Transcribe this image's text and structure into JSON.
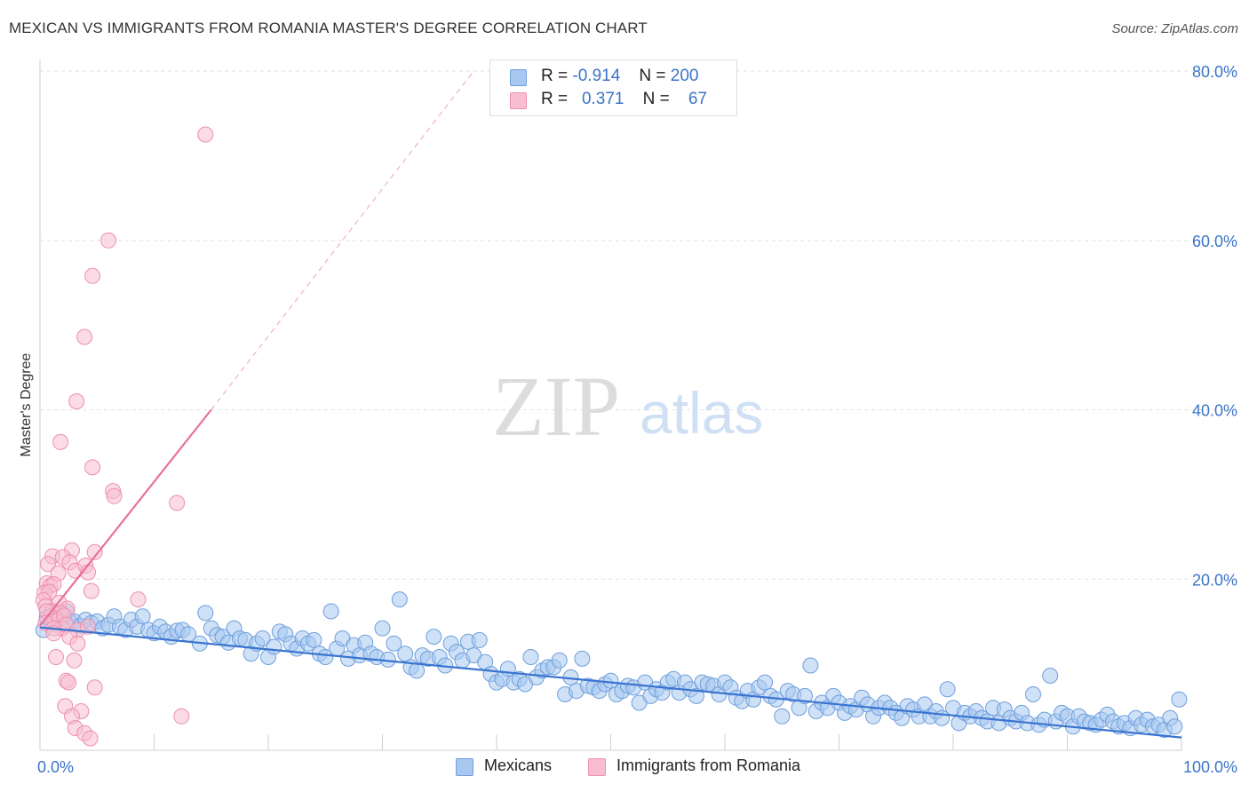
{
  "title": "MEXICAN VS IMMIGRANTS FROM ROMANIA MASTER'S DEGREE CORRELATION CHART",
  "source": "Source: ZipAtlas.com",
  "watermark": {
    "zip": "ZIP",
    "atlas": "atlas"
  },
  "legend": {
    "series": [
      {
        "r_label": "R =",
        "r_value": "-0.914",
        "n_label": "N =",
        "n_value": "200",
        "color": "#a8c8f0",
        "stroke": "#6e9fdc"
      },
      {
        "r_label": "R =",
        "r_value": "0.371",
        "n_label": "N =",
        "n_value": "67",
        "color": "#f8bdd0",
        "stroke": "#ec8fb0"
      }
    ]
  },
  "bottom_legend": [
    {
      "label": "Mexicans",
      "color": "#a8c8f0",
      "stroke": "#6e9fdc"
    },
    {
      "label": "Immigrants from Romania",
      "color": "#f8bdd0",
      "stroke": "#ec8fb0"
    }
  ],
  "chart_data": {
    "type": "scatter",
    "title": "MEXICAN VS IMMIGRANTS FROM ROMANIA MASTER'S DEGREE CORRELATION CHART",
    "xlabel": "",
    "ylabel": "Master's Degree",
    "xlim": [
      0,
      100
    ],
    "ylim": [
      0,
      80
    ],
    "x_tick_labels": [
      "0.0%",
      "100.0%"
    ],
    "y_ticks": [
      20,
      40,
      60,
      80
    ],
    "y_tick_labels": [
      "20.0%",
      "40.0%",
      "60.0%",
      "80.0%"
    ],
    "grid": true,
    "series": [
      {
        "name": "Mexicans",
        "color": "#a8c8f0",
        "stroke": "#6e9fdc",
        "trend": {
          "x0": 0,
          "y0": 14.3,
          "x1": 100,
          "y1": 1.3,
          "color": "#3a74d0"
        },
        "points": [
          [
            0.3,
            14
          ],
          [
            0.6,
            15.5
          ],
          [
            1,
            14.8
          ],
          [
            1.3,
            16
          ],
          [
            1.6,
            15.2
          ],
          [
            2,
            15.5
          ],
          [
            2.3,
            16.2
          ],
          [
            2.6,
            15
          ],
          [
            3,
            15
          ],
          [
            3.5,
            14.5
          ],
          [
            4,
            15.2
          ],
          [
            4.5,
            14.8
          ],
          [
            5,
            15
          ],
          [
            5.5,
            14.2
          ],
          [
            6,
            14.6
          ],
          [
            6.5,
            15.6
          ],
          [
            7,
            14.4
          ],
          [
            7.5,
            14
          ],
          [
            8,
            15.2
          ],
          [
            8.5,
            14.4
          ],
          [
            9,
            15.6
          ],
          [
            9.5,
            14
          ],
          [
            10,
            13.6
          ],
          [
            10.5,
            14.4
          ],
          [
            11,
            13.8
          ],
          [
            11.5,
            13.2
          ],
          [
            12,
            13.9
          ],
          [
            12.5,
            14
          ],
          [
            13,
            13.5
          ],
          [
            14,
            12.4
          ],
          [
            14.5,
            16
          ],
          [
            15,
            14.2
          ],
          [
            15.5,
            13.4
          ],
          [
            16,
            13.2
          ],
          [
            16.5,
            12.5
          ],
          [
            17,
            14.2
          ],
          [
            17.5,
            13
          ],
          [
            18,
            12.8
          ],
          [
            18.5,
            11.2
          ],
          [
            19,
            12.4
          ],
          [
            19.5,
            13
          ],
          [
            20,
            10.8
          ],
          [
            20.5,
            12
          ],
          [
            21,
            13.8
          ],
          [
            21.5,
            13.5
          ],
          [
            22,
            12.4
          ],
          [
            22.5,
            11.8
          ],
          [
            23,
            13
          ],
          [
            23.5,
            12.4
          ],
          [
            24,
            12.8
          ],
          [
            24.5,
            11.2
          ],
          [
            25,
            10.8
          ],
          [
            25.5,
            16.2
          ],
          [
            26,
            11.8
          ],
          [
            26.5,
            13
          ],
          [
            27,
            10.6
          ],
          [
            27.5,
            12.2
          ],
          [
            28,
            11
          ],
          [
            28.5,
            12.5
          ],
          [
            29,
            11.2
          ],
          [
            29.5,
            10.8
          ],
          [
            30,
            14.2
          ],
          [
            30.5,
            10.5
          ],
          [
            31,
            12.4
          ],
          [
            31.5,
            17.6
          ],
          [
            32,
            11.2
          ],
          [
            32.5,
            9.6
          ],
          [
            33,
            9.2
          ],
          [
            33.5,
            11
          ],
          [
            34,
            10.6
          ],
          [
            34.5,
            13.2
          ],
          [
            35,
            10.8
          ],
          [
            35.5,
            9.8
          ],
          [
            36,
            12.4
          ],
          [
            36.5,
            11.4
          ],
          [
            37,
            10.4
          ],
          [
            37.5,
            12.6
          ],
          [
            38,
            11
          ],
          [
            38.5,
            12.8
          ],
          [
            39,
            10.2
          ],
          [
            39.5,
            8.8
          ],
          [
            40,
            7.8
          ],
          [
            40.5,
            8.2
          ],
          [
            41,
            9.4
          ],
          [
            41.5,
            7.8
          ],
          [
            42,
            8.2
          ],
          [
            42.5,
            7.6
          ],
          [
            43,
            10.8
          ],
          [
            43.5,
            8.4
          ],
          [
            44,
            9.2
          ],
          [
            44.5,
            9.6
          ],
          [
            45,
            9.6
          ],
          [
            45.5,
            10.4
          ],
          [
            46,
            6.4
          ],
          [
            46.5,
            8.4
          ],
          [
            47,
            6.8
          ],
          [
            47.5,
            10.6
          ],
          [
            48,
            7.4
          ],
          [
            48.5,
            7.2
          ],
          [
            49,
            6.8
          ],
          [
            49.5,
            7.6
          ],
          [
            50,
            8
          ],
          [
            50.5,
            6.4
          ],
          [
            51,
            6.8
          ],
          [
            51.5,
            7.4
          ],
          [
            52,
            7.2
          ],
          [
            52.5,
            5.4
          ],
          [
            53,
            7.8
          ],
          [
            53.5,
            6.2
          ],
          [
            54,
            7
          ],
          [
            54.5,
            6.6
          ],
          [
            55,
            7.8
          ],
          [
            55.5,
            8.2
          ],
          [
            56,
            6.6
          ],
          [
            56.5,
            7.8
          ],
          [
            57,
            7
          ],
          [
            57.5,
            6.2
          ],
          [
            58,
            7.8
          ],
          [
            58.5,
            7.6
          ],
          [
            59,
            7.4
          ],
          [
            59.5,
            6.4
          ],
          [
            60,
            7.8
          ],
          [
            60.5,
            7.2
          ],
          [
            61,
            6
          ],
          [
            61.5,
            5.6
          ],
          [
            62,
            6.8
          ],
          [
            62.5,
            5.8
          ],
          [
            63,
            7.2
          ],
          [
            63.5,
            7.8
          ],
          [
            64,
            6.2
          ],
          [
            64.5,
            5.8
          ],
          [
            65,
            3.8
          ],
          [
            65.5,
            6.8
          ],
          [
            66,
            6.4
          ],
          [
            66.5,
            4.8
          ],
          [
            67,
            6.2
          ],
          [
            67.5,
            9.8
          ],
          [
            68,
            4.4
          ],
          [
            68.5,
            5.4
          ],
          [
            69,
            4.8
          ],
          [
            69.5,
            6.2
          ],
          [
            70,
            5.4
          ],
          [
            70.5,
            4.2
          ],
          [
            71,
            5
          ],
          [
            71.5,
            4.6
          ],
          [
            72,
            6
          ],
          [
            72.5,
            5.2
          ],
          [
            73,
            3.8
          ],
          [
            73.5,
            4.8
          ],
          [
            74,
            5.4
          ],
          [
            74.5,
            4.8
          ],
          [
            75,
            4.2
          ],
          [
            75.5,
            3.6
          ],
          [
            76,
            5
          ],
          [
            76.5,
            4.6
          ],
          [
            77,
            3.8
          ],
          [
            77.5,
            5.2
          ],
          [
            78,
            3.8
          ],
          [
            78.5,
            4.4
          ],
          [
            79,
            3.6
          ],
          [
            79.5,
            7
          ],
          [
            80,
            4.8
          ],
          [
            80.5,
            3
          ],
          [
            81,
            4.2
          ],
          [
            81.5,
            3.8
          ],
          [
            82,
            4.4
          ],
          [
            82.5,
            3.6
          ],
          [
            83,
            3.2
          ],
          [
            83.5,
            4.8
          ],
          [
            84,
            3
          ],
          [
            84.5,
            4.6
          ],
          [
            85,
            3.6
          ],
          [
            85.5,
            3.2
          ],
          [
            86,
            4.2
          ],
          [
            86.5,
            3
          ],
          [
            87,
            6.4
          ],
          [
            87.5,
            2.8
          ],
          [
            88,
            3.4
          ],
          [
            88.5,
            8.6
          ],
          [
            89,
            3.2
          ],
          [
            89.5,
            4.2
          ],
          [
            90,
            3.8
          ],
          [
            90.5,
            2.6
          ],
          [
            91,
            3.8
          ],
          [
            91.5,
            3.2
          ],
          [
            92,
            3
          ],
          [
            92.5,
            2.8
          ],
          [
            93,
            3.4
          ],
          [
            93.5,
            4
          ],
          [
            94,
            3.2
          ],
          [
            94.5,
            2.6
          ],
          [
            95,
            3
          ],
          [
            95.5,
            2.4
          ],
          [
            96,
            3.6
          ],
          [
            96.5,
            2.8
          ],
          [
            97,
            3.4
          ],
          [
            97.5,
            2.6
          ],
          [
            98,
            2.8
          ],
          [
            98.5,
            2.2
          ],
          [
            99,
            3.6
          ],
          [
            99.4,
            2.6
          ],
          [
            99.8,
            5.8
          ]
        ]
      },
      {
        "name": "Immigrants from Romania",
        "color": "#f8bdd0",
        "stroke": "#ec8fb0",
        "trend": {
          "x0": 0,
          "y0": 14.5,
          "x1": 15,
          "y1": 40,
          "ext_x1": 38,
          "ext_y1": 80,
          "color": "#e8709a"
        },
        "points": [
          [
            14.5,
            72.5
          ],
          [
            6,
            60
          ],
          [
            4.6,
            55.8
          ],
          [
            3.9,
            48.6
          ],
          [
            3.2,
            41
          ],
          [
            1.8,
            36.2
          ],
          [
            4.6,
            33.2
          ],
          [
            6.4,
            30.4
          ],
          [
            6.5,
            29.8
          ],
          [
            12,
            29
          ],
          [
            4.8,
            23.2
          ],
          [
            2.8,
            23.4
          ],
          [
            1.1,
            22.7
          ],
          [
            0.7,
            21.8
          ],
          [
            2,
            22.6
          ],
          [
            2.6,
            22
          ],
          [
            3.1,
            21
          ],
          [
            4,
            21.6
          ],
          [
            4.2,
            20.8
          ],
          [
            1.6,
            20.7
          ],
          [
            0.6,
            19.5
          ],
          [
            0.9,
            19.2
          ],
          [
            1.2,
            19.4
          ],
          [
            0.4,
            18.4
          ],
          [
            0.8,
            18.5
          ],
          [
            4.5,
            18.6
          ],
          [
            1.7,
            17.2
          ],
          [
            0.3,
            17.5
          ],
          [
            0.5,
            16.8
          ],
          [
            2.4,
            16.5
          ],
          [
            8.6,
            17.6
          ],
          [
            1.1,
            16.2
          ],
          [
            1.8,
            16
          ],
          [
            0.9,
            15.6
          ],
          [
            1.4,
            15.3
          ],
          [
            0.6,
            16.2
          ],
          [
            1.3,
            15
          ],
          [
            2.1,
            15.7
          ],
          [
            0.5,
            14.8
          ],
          [
            1.9,
            14.2
          ],
          [
            2.3,
            14.6
          ],
          [
            1.2,
            14.2
          ],
          [
            3.3,
            14
          ],
          [
            4.2,
            14.4
          ],
          [
            1.2,
            13.6
          ],
          [
            2.6,
            13.2
          ],
          [
            3.3,
            12.4
          ],
          [
            1.4,
            10.8
          ],
          [
            3,
            10.4
          ],
          [
            2.3,
            8
          ],
          [
            2.5,
            7.8
          ],
          [
            4.8,
            7.2
          ],
          [
            2.2,
            5
          ],
          [
            3.6,
            4.4
          ],
          [
            2.8,
            3.8
          ],
          [
            3.1,
            2.4
          ],
          [
            3.9,
            1.8
          ],
          [
            4.4,
            1.2
          ],
          [
            12.4,
            3.8
          ]
        ]
      }
    ]
  }
}
